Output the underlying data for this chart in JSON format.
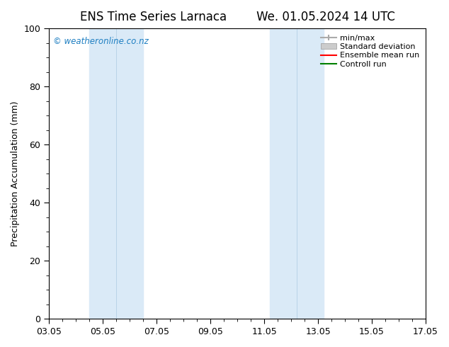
{
  "title_left": "ENS Time Series Larnaca",
  "title_right": "We. 01.05.2024 14 UTC",
  "ylabel": "Precipitation Accumulation (mm)",
  "ylim": [
    0,
    100
  ],
  "yticks": [
    0,
    20,
    40,
    60,
    80,
    100
  ],
  "xtick_labels": [
    "03.05",
    "05.05",
    "07.05",
    "09.05",
    "11.05",
    "13.05",
    "15.05",
    "17.05"
  ],
  "xtick_positions": [
    0,
    2,
    4,
    6,
    8,
    10,
    12,
    14
  ],
  "x_min": 0,
  "x_max": 14,
  "watermark": "© weatheronline.co.nz",
  "watermark_color": "#1e7fc2",
  "shaded_regions": [
    {
      "x_start": 1.5,
      "x_end": 2.5,
      "color": "#daeaf7"
    },
    {
      "x_start": 2.5,
      "x_end": 3.5,
      "color": "#daeaf7"
    },
    {
      "x_start": 8.2,
      "x_end": 9.2,
      "color": "#daeaf7"
    },
    {
      "x_start": 9.2,
      "x_end": 10.2,
      "color": "#daeaf7"
    }
  ],
  "dividing_lines": [
    2.5,
    9.2
  ],
  "legend_entries": [
    {
      "label": "min/max",
      "color": "#aaaaaa"
    },
    {
      "label": "Standard deviation",
      "color": "#cccccc"
    },
    {
      "label": "Ensemble mean run",
      "color": "#ff0000"
    },
    {
      "label": "Controll run",
      "color": "#008000"
    }
  ],
  "background_color": "#ffffff",
  "plot_bg_color": "#ffffff",
  "title_fontsize": 12,
  "axis_label_fontsize": 9,
  "tick_fontsize": 9,
  "watermark_fontsize": 8.5,
  "legend_fontsize": 8
}
